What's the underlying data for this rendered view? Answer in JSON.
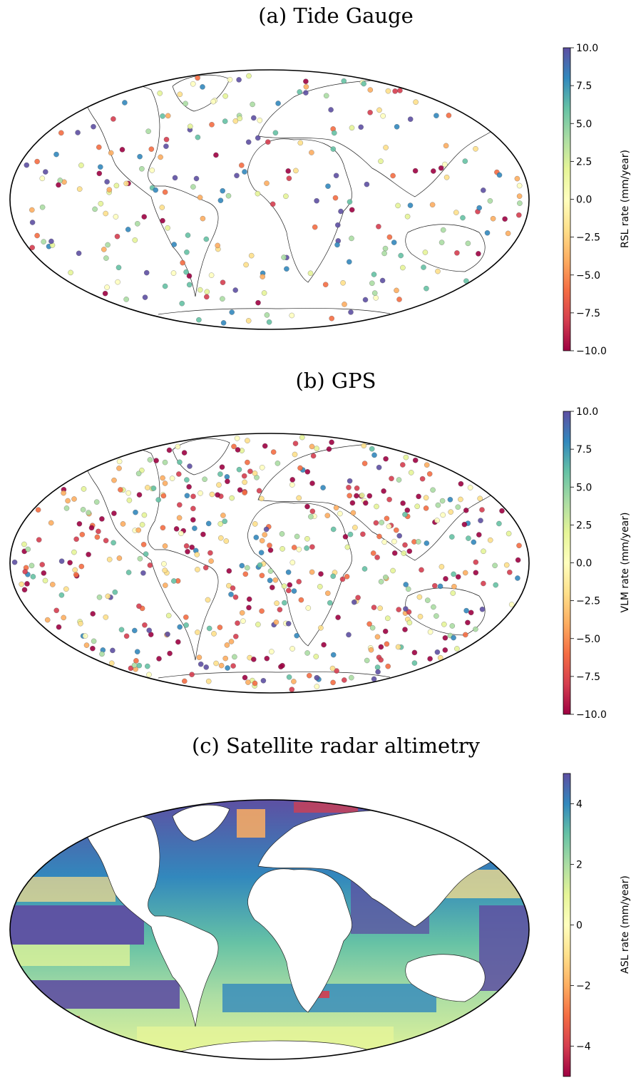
{
  "panels": [
    {
      "title": "(a) Tide Gauge",
      "colorbar": {
        "label": "RSL rate (mm/year)",
        "ticks": [
          "10.0",
          "7.5",
          "5.0",
          "2.5",
          "0.0",
          "−2.5",
          "−5.0",
          "−7.5",
          "−10.0"
        ],
        "range": [
          -10,
          10
        ]
      }
    },
    {
      "title": "(b) GPS",
      "colorbar": {
        "label": "VLM rate (mm/year)",
        "ticks": [
          "10.0",
          "7.5",
          "5.0",
          "2.5",
          "0.0",
          "−2.5",
          "−5.0",
          "−7.5",
          "−10.0"
        ],
        "range": [
          -10,
          10
        ]
      }
    },
    {
      "title": "(c) Satellite radar altimetry",
      "colorbar": {
        "label": "ASL rate (mm/year)",
        "ticks": [
          "4",
          "2",
          "0",
          "−2",
          "−4"
        ],
        "range": [
          -5,
          5
        ]
      }
    }
  ],
  "colormap": [
    "#9e0142",
    "#d53e4f",
    "#f46d43",
    "#fdae61",
    "#fee08b",
    "#ffffbf",
    "#e6f598",
    "#abdda4",
    "#66c2a5",
    "#3288bd",
    "#5e4fa2"
  ],
  "projection": "Mollweide"
}
